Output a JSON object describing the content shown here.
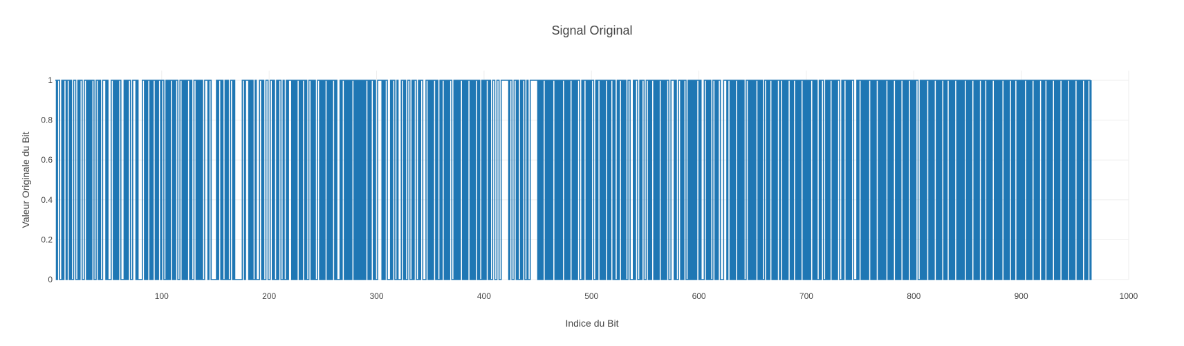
{
  "chart_data": {
    "type": "line",
    "line_shape": "step",
    "title": "Signal Original",
    "xlabel": "Indice du Bit",
    "ylabel": "Valeur Originale du Bit",
    "xlim": [
      1,
      1000
    ],
    "ylim": [
      0,
      1
    ],
    "x_ticks": [
      100,
      200,
      300,
      400,
      500,
      600,
      700,
      800,
      900,
      1000
    ],
    "y_ticks": [
      0,
      0.2,
      0.4,
      0.6,
      0.8,
      1
    ],
    "grid": true,
    "legend": "none",
    "series": [
      {
        "color": "#1f77b4",
        "x_start": 1,
        "x_step": 1,
        "values": [
          1,
          0,
          1,
          1,
          0,
          0,
          1,
          0,
          1,
          1,
          0,
          1,
          1,
          0,
          1,
          0,
          0,
          1,
          1,
          0,
          0,
          1,
          0,
          1,
          1,
          0,
          0,
          1,
          1,
          0,
          1,
          0,
          1,
          0,
          1,
          1,
          0,
          0,
          1,
          1,
          0,
          1,
          0,
          0,
          1,
          1,
          1,
          0,
          1,
          0,
          0,
          0,
          1,
          1,
          0,
          1,
          0,
          1,
          0,
          1,
          1,
          0,
          0,
          0,
          1,
          0,
          1,
          0,
          1,
          1,
          0,
          0,
          1,
          1,
          1,
          0,
          1,
          0,
          0,
          0,
          0,
          1,
          1,
          0,
          1,
          0,
          1,
          1,
          0,
          1,
          0,
          1,
          1,
          0,
          1,
          0,
          1,
          1,
          0,
          1,
          1,
          0,
          0,
          1,
          0,
          1,
          0,
          1,
          1,
          0,
          1,
          0,
          1,
          1,
          0,
          0,
          1,
          1,
          0,
          1,
          0,
          1,
          0,
          1,
          1,
          0,
          1,
          0,
          0,
          1,
          1,
          0,
          1,
          0,
          1,
          0,
          1,
          0,
          0,
          1,
          1,
          1,
          0,
          1,
          1,
          0,
          0,
          0,
          0,
          0,
          1,
          0,
          1,
          1,
          0,
          1,
          0,
          0,
          1,
          0,
          1,
          0,
          0,
          1,
          1,
          0,
          1,
          0,
          0,
          0,
          0,
          0,
          0,
          0,
          1,
          1,
          0,
          1,
          1,
          1,
          0,
          1,
          0,
          1,
          0,
          0,
          1,
          0,
          0,
          0,
          1,
          1,
          0,
          1,
          0,
          0,
          1,
          1,
          0,
          0,
          1,
          1,
          0,
          1,
          0,
          0,
          1,
          0,
          1,
          1,
          0,
          0,
          1,
          0,
          0,
          1,
          0,
          1,
          1,
          1,
          0,
          1,
          0,
          1,
          0,
          1,
          1,
          0,
          1,
          0,
          1,
          1,
          0,
          1,
          0,
          0,
          1,
          1,
          0,
          1,
          0,
          1,
          0,
          0,
          1,
          1,
          0,
          1,
          0,
          1,
          0,
          1,
          1,
          0,
          1,
          0,
          1,
          0,
          1,
          1,
          0,
          1,
          0,
          0,
          0,
          1,
          0,
          1,
          1,
          0,
          1,
          0,
          1,
          0,
          1,
          0,
          1,
          1,
          0,
          1,
          0,
          1,
          0,
          1,
          0,
          1,
          0,
          1,
          0,
          1,
          1,
          0,
          1,
          0,
          1,
          1,
          0,
          1,
          0,
          0,
          1,
          1,
          1,
          1,
          0,
          1,
          0,
          1,
          1,
          0,
          0,
          0,
          1,
          0,
          1,
          1,
          0,
          0,
          1,
          0,
          0,
          0,
          1,
          1,
          0,
          1,
          0,
          0,
          1,
          1,
          0,
          0,
          1,
          0,
          1,
          1,
          0,
          0,
          1,
          0,
          1,
          1,
          0,
          0,
          0,
          1,
          1,
          0,
          1,
          0,
          1,
          0,
          1,
          1,
          0,
          1,
          0,
          0,
          1,
          0,
          1,
          1,
          0,
          1,
          0,
          1,
          0,
          1,
          1,
          0,
          0,
          1,
          0,
          1,
          0,
          1,
          0,
          1,
          1,
          0,
          1,
          0,
          1,
          0,
          1,
          1,
          0,
          1,
          0,
          1,
          0,
          1,
          1,
          0,
          1,
          0,
          0,
          1,
          0,
          1,
          0,
          1,
          1,
          0,
          1,
          0,
          0,
          1,
          1,
          0,
          0,
          1,
          1,
          0,
          0,
          1,
          1,
          1,
          1,
          1,
          1,
          1,
          0,
          1,
          1,
          0,
          0,
          1,
          1,
          0,
          1,
          0,
          0,
          1,
          0,
          1,
          1,
          0,
          0,
          1,
          0,
          0,
          1,
          1,
          1,
          1,
          1,
          1,
          1,
          0,
          1,
          0,
          1,
          0,
          1,
          1,
          0,
          1,
          0,
          1,
          0,
          1,
          0,
          1,
          1,
          0,
          1,
          0,
          1,
          0,
          1,
          0,
          1,
          1,
          0,
          1,
          0,
          1,
          0,
          1,
          1,
          0,
          1,
          0,
          1,
          0,
          1,
          1,
          0,
          0,
          1,
          0,
          1,
          1,
          0,
          1,
          0,
          1,
          0,
          1,
          1,
          0,
          0,
          1,
          0,
          1,
          1,
          0,
          1,
          0,
          1,
          0,
          1,
          1,
          0,
          1,
          0,
          1,
          1,
          0,
          1,
          0,
          0,
          1,
          0,
          1,
          1,
          0,
          1,
          0,
          1,
          0,
          0,
          1,
          1,
          0,
          0,
          0,
          1,
          0,
          1,
          1,
          0,
          0,
          1,
          0,
          1,
          1,
          0,
          0,
          1,
          1,
          0,
          1,
          0,
          1,
          1,
          0,
          1,
          0,
          1,
          0,
          1,
          1,
          0,
          1,
          0,
          1,
          0,
          1,
          1,
          0,
          0,
          1,
          1,
          1,
          0,
          1,
          0,
          0,
          1,
          1,
          0,
          1,
          0,
          1,
          1,
          0,
          0,
          1,
          0,
          1,
          0,
          1,
          0,
          1,
          0,
          1,
          1,
          0,
          1,
          0,
          0,
          0,
          1,
          1,
          0,
          1,
          0,
          1,
          0,
          0,
          1,
          1,
          0,
          1,
          0,
          1,
          1,
          0,
          0,
          0,
          1,
          1,
          1,
          0,
          1,
          1,
          0,
          1,
          0,
          1,
          0,
          1,
          1,
          0,
          1,
          0,
          1,
          0,
          1,
          0,
          0,
          1,
          1,
          0,
          1,
          0,
          1,
          0,
          1,
          0,
          1,
          1,
          0,
          1,
          0,
          1,
          0,
          0,
          1,
          1,
          0,
          1,
          0,
          1,
          1,
          0,
          1,
          0,
          1,
          0,
          1,
          1,
          0,
          1,
          1,
          0,
          1,
          0,
          1,
          0,
          1,
          1,
          0,
          1,
          0,
          1,
          1,
          0,
          1,
          0,
          1,
          0,
          1,
          1,
          0,
          1,
          0,
          1,
          0,
          1,
          0,
          1,
          1,
          0,
          1,
          0,
          1,
          0,
          0,
          1,
          0,
          1,
          1,
          0,
          0,
          1,
          0,
          1,
          0,
          1,
          1,
          0,
          1,
          0,
          1,
          0,
          1,
          1,
          0,
          0,
          1,
          0,
          1,
          1,
          0,
          1,
          0,
          1,
          0,
          1,
          1,
          0,
          0,
          0,
          1,
          0,
          1,
          1,
          0,
          1,
          0,
          1,
          0,
          1,
          0,
          1,
          1,
          0,
          1,
          0,
          1,
          0,
          1,
          1,
          0,
          1,
          0,
          1,
          0,
          1,
          0,
          1,
          1,
          0,
          1,
          0,
          1,
          0,
          1,
          1,
          0,
          1,
          0,
          1,
          0,
          1,
          1,
          0,
          1,
          0,
          1,
          0,
          1,
          1,
          0,
          1,
          0,
          1,
          0,
          1,
          1,
          0,
          0,
          1,
          0,
          1,
          0,
          1,
          0,
          1,
          1,
          0,
          1,
          0,
          1,
          0,
          1,
          1,
          0,
          1,
          0,
          1,
          0,
          1,
          1,
          0,
          1,
          0,
          1,
          1,
          0,
          1,
          0,
          1,
          0,
          1,
          1,
          0,
          1,
          0,
          1,
          0,
          1,
          0,
          1,
          1,
          0,
          1,
          0,
          1,
          0,
          1,
          1,
          0,
          1,
          0,
          1,
          0,
          1,
          1,
          0,
          1,
          0,
          1,
          1,
          0,
          1,
          0,
          1,
          0,
          1,
          1,
          0,
          1,
          0,
          1,
          0,
          1,
          0,
          1,
          1,
          0,
          1,
          0,
          1,
          0,
          1,
          1,
          0,
          1,
          0,
          1,
          1,
          0,
          1,
          0,
          1,
          0,
          1,
          0,
          1,
          1,
          0,
          1,
          0,
          1,
          0,
          1,
          1,
          0,
          1,
          0,
          1,
          0,
          1,
          1,
          0,
          1,
          0,
          1,
          1,
          0,
          1,
          0,
          1,
          0,
          1,
          1,
          0,
          1,
          0,
          1,
          0,
          1,
          1,
          0,
          1,
          0,
          1,
          0,
          1,
          1,
          0,
          1,
          0,
          1,
          0,
          1,
          1,
          0,
          1,
          0,
          1,
          0,
          1,
          1,
          0,
          1,
          0,
          1,
          1,
          0,
          1
        ]
      }
    ]
  }
}
